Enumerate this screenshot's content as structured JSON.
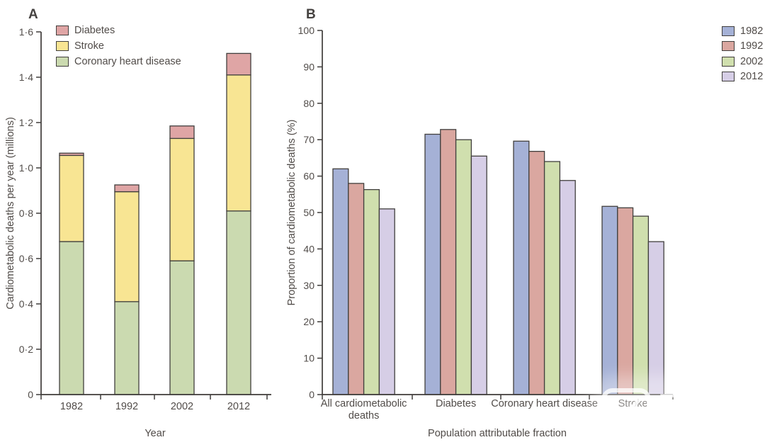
{
  "figure": {
    "panel_a": {
      "label": "A",
      "ylabel": "Cardiometabolic deaths per year (millions)",
      "xlabel": "Year"
    },
    "panel_b": {
      "label": "B",
      "ylabel": "Proportion of cardiometabolic deaths (%)",
      "xlabel": "Population attributable fraction"
    },
    "watermark": {
      "text": "医咖会"
    }
  },
  "colors": {
    "axis": "#3f3c3a",
    "bar_border": "#413f3d",
    "text": "#514c49"
  },
  "chart_data": [
    {
      "type": "bar",
      "subtype": "stacked",
      "panel": "A",
      "categories": [
        "1982",
        "1992",
        "2002",
        "2012"
      ],
      "series": [
        {
          "name": "Coronary heart disease",
          "color": "#cbdab0",
          "values": [
            0.675,
            0.41,
            0.59,
            0.81
          ]
        },
        {
          "name": "Stroke",
          "color": "#f8e593",
          "values": [
            0.38,
            0.485,
            0.54,
            0.6
          ]
        },
        {
          "name": "Diabetes",
          "color": "#dfa5a5",
          "values": [
            0.01,
            0.03,
            0.055,
            0.095
          ]
        }
      ],
      "legend_order": [
        "Diabetes",
        "Stroke",
        "Coronary heart disease"
      ],
      "legend_position": "top-left-inside",
      "xlabel": "Year",
      "ylabel": "Cardiometabolic deaths per year (millions)",
      "ylim": [
        0,
        1.6
      ],
      "ytick_labels": [
        "0",
        "0·2",
        "0·4",
        "0·6",
        "0·8",
        "1·0",
        "1·2",
        "1·4",
        "1·6"
      ],
      "ytick_values": [
        0,
        0.2,
        0.4,
        0.6,
        0.8,
        1.0,
        1.2,
        1.4,
        1.6
      ],
      "grid": false
    },
    {
      "type": "bar",
      "subtype": "grouped",
      "panel": "B",
      "categories": [
        "All cardiometabolic deaths",
        "Diabetes",
        "Coronary heart disease",
        "Stroke"
      ],
      "series": [
        {
          "name": "1982",
          "color": "#a5b1d6",
          "values": [
            62.0,
            71.5,
            69.6,
            51.7
          ]
        },
        {
          "name": "1992",
          "color": "#daa7a0",
          "values": [
            58.0,
            72.8,
            66.8,
            51.3
          ]
        },
        {
          "name": "2002",
          "color": "#d0dfae",
          "values": [
            56.3,
            70.0,
            64.0,
            49.0
          ]
        },
        {
          "name": "2012",
          "color": "#d6cee6",
          "values": [
            51.0,
            65.5,
            58.8,
            42.0
          ]
        }
      ],
      "legend_order": [
        "1982",
        "1992",
        "2002",
        "2012"
      ],
      "legend_position": "top-right",
      "xlabel": "Population attributable fraction",
      "ylabel": "Proportion of cardiometabolic deaths (%)",
      "ylim": [
        0,
        100
      ],
      "ytick_labels": [
        "0",
        "10",
        "20",
        "30",
        "40",
        "50",
        "60",
        "70",
        "80",
        "90",
        "100"
      ],
      "ytick_values": [
        0,
        10,
        20,
        30,
        40,
        50,
        60,
        70,
        80,
        90,
        100
      ],
      "grid": false
    }
  ]
}
